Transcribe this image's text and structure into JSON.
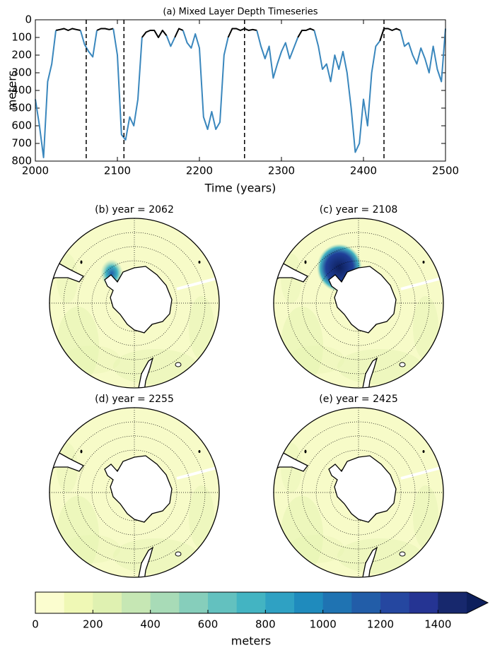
{
  "chart_data": [
    {
      "type": "line",
      "title": "(a) Mixed Layer Depth Timeseries",
      "x_label": "Time (years)",
      "y_label": "meters",
      "xlim": [
        2000,
        2500
      ],
      "xticks": [
        2000,
        2100,
        2200,
        2300,
        2400,
        2500
      ],
      "ylim": [
        0,
        800
      ],
      "yticks": [
        0,
        100,
        200,
        300,
        400,
        500,
        600,
        700,
        800
      ],
      "invert_y": true,
      "x": [
        2000,
        2005,
        2010,
        2015,
        2020,
        2025,
        2030,
        2035,
        2040,
        2045,
        2050,
        2055,
        2060,
        2065,
        2070,
        2075,
        2080,
        2085,
        2090,
        2095,
        2100,
        2105,
        2110,
        2115,
        2120,
        2125,
        2130,
        2135,
        2140,
        2145,
        2150,
        2155,
        2160,
        2165,
        2170,
        2175,
        2180,
        2185,
        2190,
        2195,
        2200,
        2205,
        2210,
        2215,
        2220,
        2225,
        2230,
        2235,
        2240,
        2245,
        2250,
        2255,
        2260,
        2265,
        2270,
        2275,
        2280,
        2285,
        2290,
        2295,
        2300,
        2305,
        2310,
        2315,
        2320,
        2325,
        2330,
        2335,
        2340,
        2345,
        2350,
        2355,
        2360,
        2365,
        2370,
        2375,
        2380,
        2385,
        2390,
        2395,
        2400,
        2405,
        2410,
        2415,
        2420,
        2425,
        2430,
        2435,
        2440,
        2445,
        2450,
        2455,
        2460,
        2465,
        2470,
        2475,
        2480,
        2485,
        2490,
        2495,
        2500
      ],
      "series": [
        {
          "color": "#000000",
          "values": [
            null,
            null,
            null,
            null,
            null,
            60,
            55,
            50,
            60,
            50,
            55,
            60,
            null,
            null,
            null,
            60,
            50,
            50,
            55,
            50,
            null,
            null,
            null,
            null,
            null,
            null,
            100,
            70,
            60,
            60,
            100,
            60,
            90,
            null,
            100,
            50,
            60,
            null,
            null,
            80,
            null,
            null,
            null,
            null,
            null,
            null,
            null,
            100,
            50,
            50,
            60,
            50,
            60,
            55,
            60,
            null,
            null,
            null,
            null,
            null,
            null,
            null,
            null,
            null,
            100,
            60,
            60,
            50,
            60,
            null,
            null,
            null,
            null,
            null,
            null,
            null,
            null,
            null,
            null,
            null,
            null,
            null,
            null,
            null,
            120,
            50,
            50,
            60,
            50,
            60,
            null,
            null,
            null,
            null,
            null,
            null,
            null,
            null,
            null,
            null,
            50
          ]
        },
        {
          "color": "#3a87bd",
          "values": [
            450,
            600,
            780,
            350,
            250,
            60,
            null,
            null,
            null,
            null,
            null,
            60,
            140,
            180,
            210,
            60,
            null,
            null,
            null,
            50,
            200,
            650,
            680,
            550,
            600,
            450,
            100,
            null,
            null,
            null,
            null,
            null,
            90,
            150,
            100,
            null,
            60,
            130,
            160,
            80,
            160,
            550,
            620,
            520,
            620,
            580,
            200,
            100,
            null,
            null,
            null,
            null,
            null,
            null,
            60,
            150,
            220,
            150,
            330,
            250,
            180,
            130,
            220,
            160,
            100,
            null,
            null,
            null,
            60,
            150,
            280,
            250,
            350,
            200,
            280,
            180,
            300,
            500,
            750,
            700,
            450,
            600,
            300,
            150,
            120,
            null,
            null,
            null,
            null,
            60,
            150,
            130,
            200,
            250,
            160,
            220,
            300,
            150,
            280,
            350,
            50
          ]
        }
      ],
      "vlines": [
        2062,
        2108,
        2255,
        2425
      ]
    },
    {
      "type": "map",
      "title": "(b) year = 2062"
    },
    {
      "type": "map",
      "title": "(c) year = 2108"
    },
    {
      "type": "map",
      "title": "(d) year = 2255"
    },
    {
      "type": "map",
      "title": "(e) year = 2425"
    },
    {
      "type": "colorbar",
      "label": "meters",
      "extend": "max",
      "bounds": [
        0,
        100,
        200,
        300,
        400,
        500,
        600,
        700,
        800,
        900,
        1000,
        1100,
        1200,
        1300,
        1400,
        1500
      ],
      "colors": [
        "#fbfdcf",
        "#eff8b5",
        "#dff1b1",
        "#c6e7b4",
        "#a8dbb7",
        "#86cebb",
        "#63c1bf",
        "#43b4c2",
        "#2fa1c3",
        "#1f8bbd",
        "#1f73b2",
        "#225da8",
        "#2547a0",
        "#253493",
        "#17286d"
      ],
      "extend_color": "#0d1f5c",
      "ticks": [
        0,
        200,
        400,
        600,
        800,
        1000,
        1200,
        1400
      ]
    }
  ]
}
